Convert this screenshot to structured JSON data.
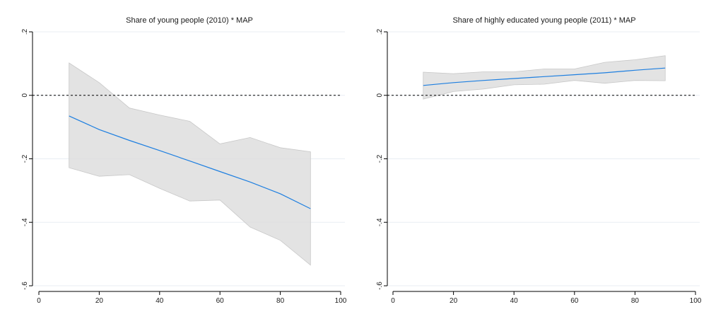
{
  "chart_data": [
    {
      "type": "line",
      "title": "Share of young people (2010) * MAP",
      "xlim": [
        0,
        100
      ],
      "ylim": [
        -0.6,
        0.2
      ],
      "x_ticks": [
        "0",
        "20",
        "40",
        "60",
        "80",
        "100"
      ],
      "y_ticks": [
        ".2",
        "0",
        "-.2",
        "-.4",
        "-.6"
      ],
      "grid": true,
      "reference_line": 0,
      "x": [
        10,
        20,
        30,
        40,
        50,
        60,
        70,
        80,
        90
      ],
      "series": [
        {
          "values": [
            -0.065,
            -0.108,
            -0.142,
            -0.174,
            -0.207,
            -0.24,
            -0.273,
            -0.31,
            -0.357
          ]
        }
      ],
      "ci_upper": [
        0.102,
        0.04,
        -0.04,
        -0.062,
        -0.082,
        -0.153,
        -0.133,
        -0.165,
        -0.178
      ],
      "ci_lower": [
        -0.228,
        -0.255,
        -0.25,
        -0.293,
        -0.333,
        -0.33,
        -0.415,
        -0.457,
        -0.535
      ]
    },
    {
      "type": "line",
      "title": "Share of highly educated young people (2011) * MAP",
      "xlim": [
        0,
        100
      ],
      "ylim": [
        -0.6,
        0.2
      ],
      "x_ticks": [
        "0",
        "20",
        "40",
        "60",
        "80",
        "100"
      ],
      "y_ticks": [
        ".2",
        "0",
        "-.2",
        "-.4",
        "-.6"
      ],
      "grid": true,
      "reference_line": 0,
      "x": [
        10,
        20,
        30,
        40,
        50,
        60,
        70,
        80,
        90
      ],
      "series": [
        {
          "values": [
            0.031,
            0.04,
            0.047,
            0.053,
            0.059,
            0.065,
            0.071,
            0.079,
            0.086
          ]
        }
      ],
      "ci_upper": [
        0.073,
        0.068,
        0.074,
        0.074,
        0.083,
        0.083,
        0.104,
        0.112,
        0.125
      ],
      "ci_lower": [
        -0.012,
        0.012,
        0.02,
        0.033,
        0.035,
        0.047,
        0.038,
        0.047,
        0.046
      ]
    }
  ]
}
